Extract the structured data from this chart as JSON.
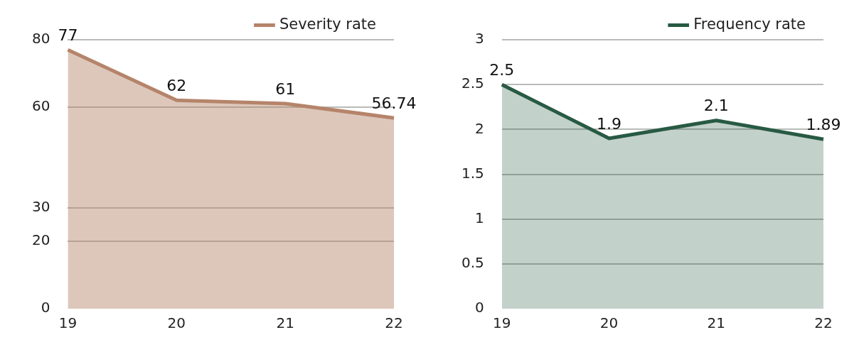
{
  "chart_data": [
    {
      "type": "area",
      "categories": [
        "19",
        "20",
        "21",
        "22"
      ],
      "series": [
        {
          "name": "Severity rate",
          "color": "#b5846a",
          "values": [
            77,
            62,
            61,
            56.74
          ]
        }
      ],
      "ylim": [
        0,
        80
      ],
      "yticks": [
        0,
        20,
        30,
        60,
        80
      ],
      "grid": "y",
      "legend": "top right",
      "data_labels": true,
      "marker": "none"
    },
    {
      "type": "area",
      "categories": [
        "19",
        "20",
        "21",
        "22"
      ],
      "series": [
        {
          "name": "Frequency rate",
          "color": "#285a43",
          "values": [
            2.5,
            1.9,
            2.1,
            1.89
          ]
        }
      ],
      "ylim": [
        0,
        3
      ],
      "yticks": [
        0,
        0.5,
        1,
        1.5,
        2,
        2.5,
        3
      ],
      "grid": "y",
      "legend": "top right",
      "data_labels": true,
      "marker": "none"
    }
  ]
}
